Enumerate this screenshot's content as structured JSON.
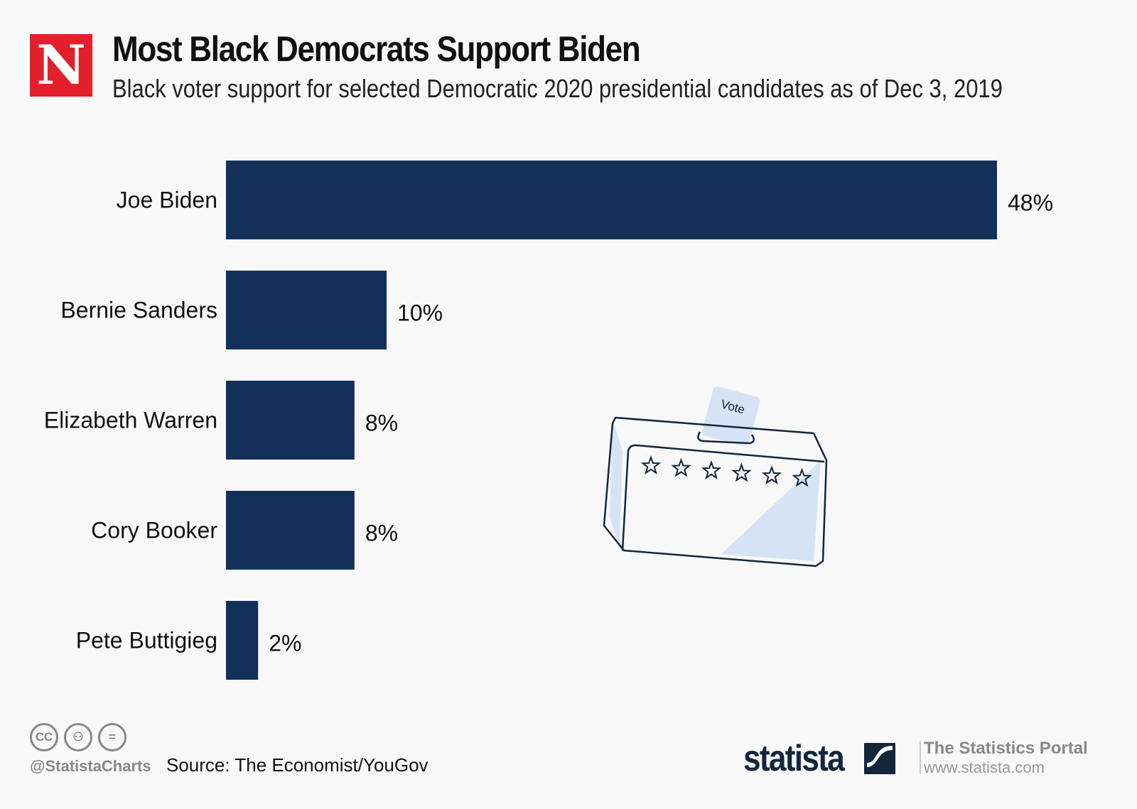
{
  "logo": {
    "letter": "N"
  },
  "header": {
    "title": "Most Black Democrats Support Biden",
    "subtitle": "Black voter support for selected Democratic 2020 presidential candidates as of Dec 3, 2019"
  },
  "chart_data": {
    "type": "bar",
    "orientation": "horizontal",
    "title": "Most Black Democrats Support Biden",
    "subtitle": "Black voter support for selected Democratic 2020 presidential candidates as of Dec 3, 2019",
    "categories": [
      "Joe Biden",
      "Bernie Sanders",
      "Elizabeth Warren",
      "Cory Booker",
      "Pete Buttigieg"
    ],
    "values": [
      48,
      10,
      8,
      8,
      2
    ],
    "value_labels": [
      "48%",
      "10%",
      "8%",
      "8%",
      "2%"
    ],
    "unit": "%",
    "xlim": [
      0,
      48
    ],
    "grid": false,
    "bar_color": "#13305a"
  },
  "illustration": {
    "ballot_text": "Vote"
  },
  "footer": {
    "license_icons": [
      "cc-icon",
      "attribution-icon",
      "no-derivatives-icon"
    ],
    "cc_text": "CC",
    "handle": "@StatistaCharts",
    "source": "Source: The Economist/YouGov",
    "brand": "statista",
    "portal": "The Statistics Portal",
    "url": "www.statista.com"
  }
}
